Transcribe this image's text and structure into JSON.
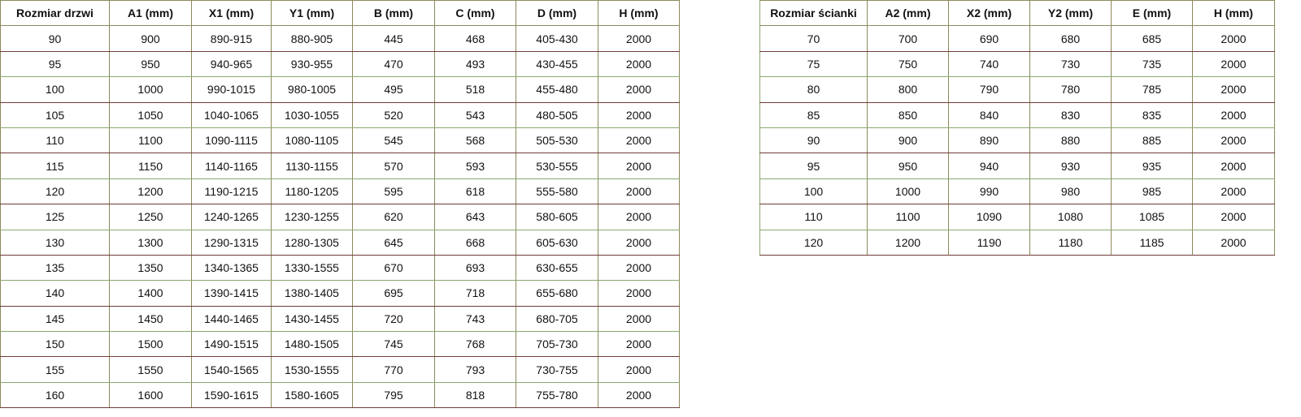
{
  "doors_table": {
    "headers": [
      "Rozmiar drzwi",
      "A1 (mm)",
      "X1 (mm)",
      "Y1 (mm)",
      "B (mm)",
      "C (mm)",
      "D (mm)",
      "H (mm)"
    ],
    "rows": [
      [
        "90",
        "900",
        "890-915",
        "880-905",
        "445",
        "468",
        "405-430",
        "2000"
      ],
      [
        "95",
        "950",
        "940-965",
        "930-955",
        "470",
        "493",
        "430-455",
        "2000"
      ],
      [
        "100",
        "1000",
        "990-1015",
        "980-1005",
        "495",
        "518",
        "455-480",
        "2000"
      ],
      [
        "105",
        "1050",
        "1040-1065",
        "1030-1055",
        "520",
        "543",
        "480-505",
        "2000"
      ],
      [
        "110",
        "1100",
        "1090-1115",
        "1080-1105",
        "545",
        "568",
        "505-530",
        "2000"
      ],
      [
        "115",
        "1150",
        "1140-1165",
        "1130-1155",
        "570",
        "593",
        "530-555",
        "2000"
      ],
      [
        "120",
        "1200",
        "1190-1215",
        "1180-1205",
        "595",
        "618",
        "555-580",
        "2000"
      ],
      [
        "125",
        "1250",
        "1240-1265",
        "1230-1255",
        "620",
        "643",
        "580-605",
        "2000"
      ],
      [
        "130",
        "1300",
        "1290-1315",
        "1280-1305",
        "645",
        "668",
        "605-630",
        "2000"
      ],
      [
        "135",
        "1350",
        "1340-1365",
        "1330-1555",
        "670",
        "693",
        "630-655",
        "2000"
      ],
      [
        "140",
        "1400",
        "1390-1415",
        "1380-1405",
        "695",
        "718",
        "655-680",
        "2000"
      ],
      [
        "145",
        "1450",
        "1440-1465",
        "1430-1455",
        "720",
        "743",
        "680-705",
        "2000"
      ],
      [
        "150",
        "1500",
        "1490-1515",
        "1480-1505",
        "745",
        "768",
        "705-730",
        "2000"
      ],
      [
        "155",
        "1550",
        "1540-1565",
        "1530-1555",
        "770",
        "793",
        "730-755",
        "2000"
      ],
      [
        "160",
        "1600",
        "1590-1615",
        "1580-1605",
        "795",
        "818",
        "755-780",
        "2000"
      ]
    ]
  },
  "walls_table": {
    "headers": [
      "Rozmiar ścianki",
      "A2 (mm)",
      "X2 (mm)",
      "Y2 (mm)",
      "E (mm)",
      "H (mm)"
    ],
    "rows": [
      [
        "70",
        "700",
        "690",
        "680",
        "685",
        "2000"
      ],
      [
        "75",
        "750",
        "740",
        "730",
        "735",
        "2000"
      ],
      [
        "80",
        "800",
        "790",
        "780",
        "785",
        "2000"
      ],
      [
        "85",
        "850",
        "840",
        "830",
        "835",
        "2000"
      ],
      [
        "90",
        "900",
        "890",
        "880",
        "885",
        "2000"
      ],
      [
        "95",
        "950",
        "940",
        "930",
        "935",
        "2000"
      ],
      [
        "100",
        "1000",
        "990",
        "980",
        "985",
        "2000"
      ],
      [
        "110",
        "1100",
        "1090",
        "1080",
        "1085",
        "2000"
      ],
      [
        "120",
        "1200",
        "1190",
        "1180",
        "1185",
        "2000"
      ]
    ]
  }
}
